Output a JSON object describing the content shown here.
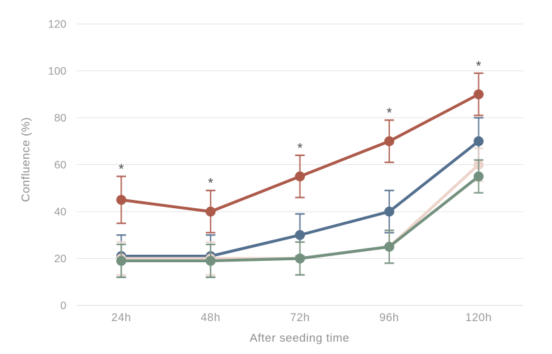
{
  "chart_data": {
    "type": "line",
    "title": "",
    "xlabel": "After seeding time",
    "ylabel": "Confluence (%)",
    "categories": [
      "24h",
      "48h",
      "72h",
      "96h",
      "120h"
    ],
    "ylim": [
      0,
      120
    ],
    "yticks": [
      0,
      20,
      40,
      60,
      80,
      100,
      120
    ],
    "grid": true,
    "legend_position": "none",
    "series": [
      {
        "name": "red-series",
        "color": "#ad5a4b",
        "values": [
          45,
          40,
          55,
          70,
          90
        ],
        "errors": [
          10,
          9,
          9,
          9,
          9
        ],
        "significance": [
          "*",
          "*",
          "*",
          "*",
          "*"
        ]
      },
      {
        "name": "blue-series",
        "color": "#54708f",
        "values": [
          21,
          21,
          30,
          40,
          70
        ],
        "errors": [
          9,
          9,
          9,
          9,
          10
        ],
        "significance": null
      },
      {
        "name": "pink-series",
        "color": "#ecd4cb",
        "values": [
          20,
          20,
          20,
          25,
          60
        ],
        "errors": [
          7,
          7,
          7,
          7,
          7
        ],
        "significance": null
      },
      {
        "name": "green-series",
        "color": "#74917f",
        "values": [
          19,
          19,
          20,
          25,
          55
        ],
        "errors": [
          7,
          7,
          7,
          7,
          7
        ],
        "significance": null
      }
    ],
    "colors": {
      "grid": "#e3e3e3",
      "axis_line": "#d9d9d9",
      "tick_text": "#9b9b9b",
      "axis_title": "#8f8f8f",
      "significance": "#4d4d4d",
      "background": "#ffffff"
    }
  }
}
